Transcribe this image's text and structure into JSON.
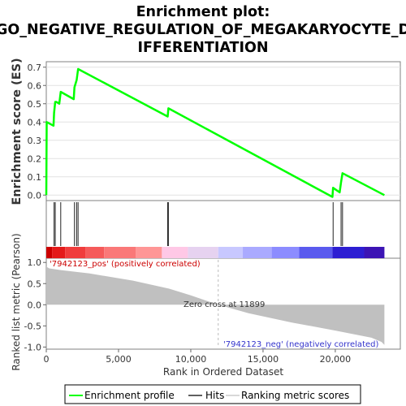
{
  "title_line1": "Enrichment plot:",
  "title_line2": "GO_NEGATIVE_REGULATION_OF_MEGAKARYOCYTE_D",
  "title_line3": "IFFERENTIATION",
  "chart_data": {
    "type": "line",
    "enrichment": {
      "ylabel": "Enrichment score (ES)",
      "ylim": [
        -0.03,
        0.73
      ],
      "yticks": [
        "0.0",
        "0.1",
        "0.2",
        "0.3",
        "0.4",
        "0.5",
        "0.6",
        "0.7"
      ],
      "ytick_values": [
        0.0,
        0.1,
        0.2,
        0.3,
        0.4,
        0.5,
        0.6,
        0.7
      ],
      "series": [
        {
          "name": "Enrichment profile",
          "color": "#00ff00",
          "x": [
            0,
            30,
            500,
            540,
            620,
            700,
            900,
            1000,
            1900,
            1950,
            2100,
            2200,
            8400,
            8450,
            19800,
            19850,
            20300,
            20400,
            20500,
            23400
          ],
          "y": [
            0.0,
            0.4,
            0.38,
            0.45,
            0.51,
            0.51,
            0.5,
            0.565,
            0.525,
            0.59,
            0.63,
            0.69,
            0.43,
            0.475,
            -0.01,
            0.04,
            0.015,
            0.07,
            0.12,
            0.0
          ]
        }
      ]
    },
    "hits": {
      "name": "Hits",
      "positions": [
        540,
        620,
        1000,
        1950,
        2100,
        2200,
        8400,
        8450,
        19850,
        20400,
        20500
      ]
    },
    "ranked_metric": {
      "ylabel": "Ranked list metric (Pearson)",
      "ylim": [
        -1.05,
        1.1
      ],
      "yticks": [
        "1.0",
        "0.5",
        "0.0",
        "-0.5",
        "-1.0"
      ],
      "ytick_values": [
        1.0,
        0.5,
        0.0,
        -0.5,
        -1.0
      ],
      "fill_color": "#c0c0c0",
      "x": [
        0,
        200,
        1000,
        3000,
        6000,
        8500,
        10000,
        11899,
        14000,
        17000,
        20000,
        22500,
        23200,
        23400
      ],
      "y": [
        0.9,
        0.86,
        0.82,
        0.74,
        0.57,
        0.38,
        0.22,
        0.0,
        -0.2,
        -0.42,
        -0.61,
        -0.78,
        -0.88,
        -0.95
      ],
      "zero_cross_label": "Zero cross at 11899",
      "zero_cross_x": 11899,
      "pos_label": "'7942123_pos' (positively correlated)",
      "neg_label": "'7942123_neg' (negatively correlated)",
      "pos_color": "#cc0000",
      "neg_color": "#3333cc"
    },
    "xlabel": "Rank in Ordered Dataset",
    "xlim": [
      0,
      24500
    ],
    "xticks": [
      "0",
      "5,000",
      "10,000",
      "15,000",
      "20,000"
    ],
    "xtick_values": [
      0,
      5000,
      10000,
      15000,
      20000
    ],
    "color_bar": [
      "#cc0000",
      "#e41a1a",
      "#f03c3c",
      "#f55a5a",
      "#fa7878",
      "#ff9696",
      "#ffc8e6",
      "#e6d2f0",
      "#c8c8ff",
      "#aaaaff",
      "#8c8cff",
      "#5a5aee",
      "#2d1ed2",
      "#3c14b4"
    ],
    "color_bar_bounds": [
      0,
      400,
      1300,
      2700,
      4000,
      6200,
      8000,
      9800,
      11899,
      13600,
      15600,
      17500,
      19800,
      22000,
      23400
    ]
  },
  "legend": {
    "items": [
      {
        "label": "Enrichment profile",
        "color": "#00ff00"
      },
      {
        "label": "Hits",
        "color": "#606060"
      },
      {
        "label": "Ranking metric scores",
        "color": "#d8d8d8"
      }
    ]
  }
}
